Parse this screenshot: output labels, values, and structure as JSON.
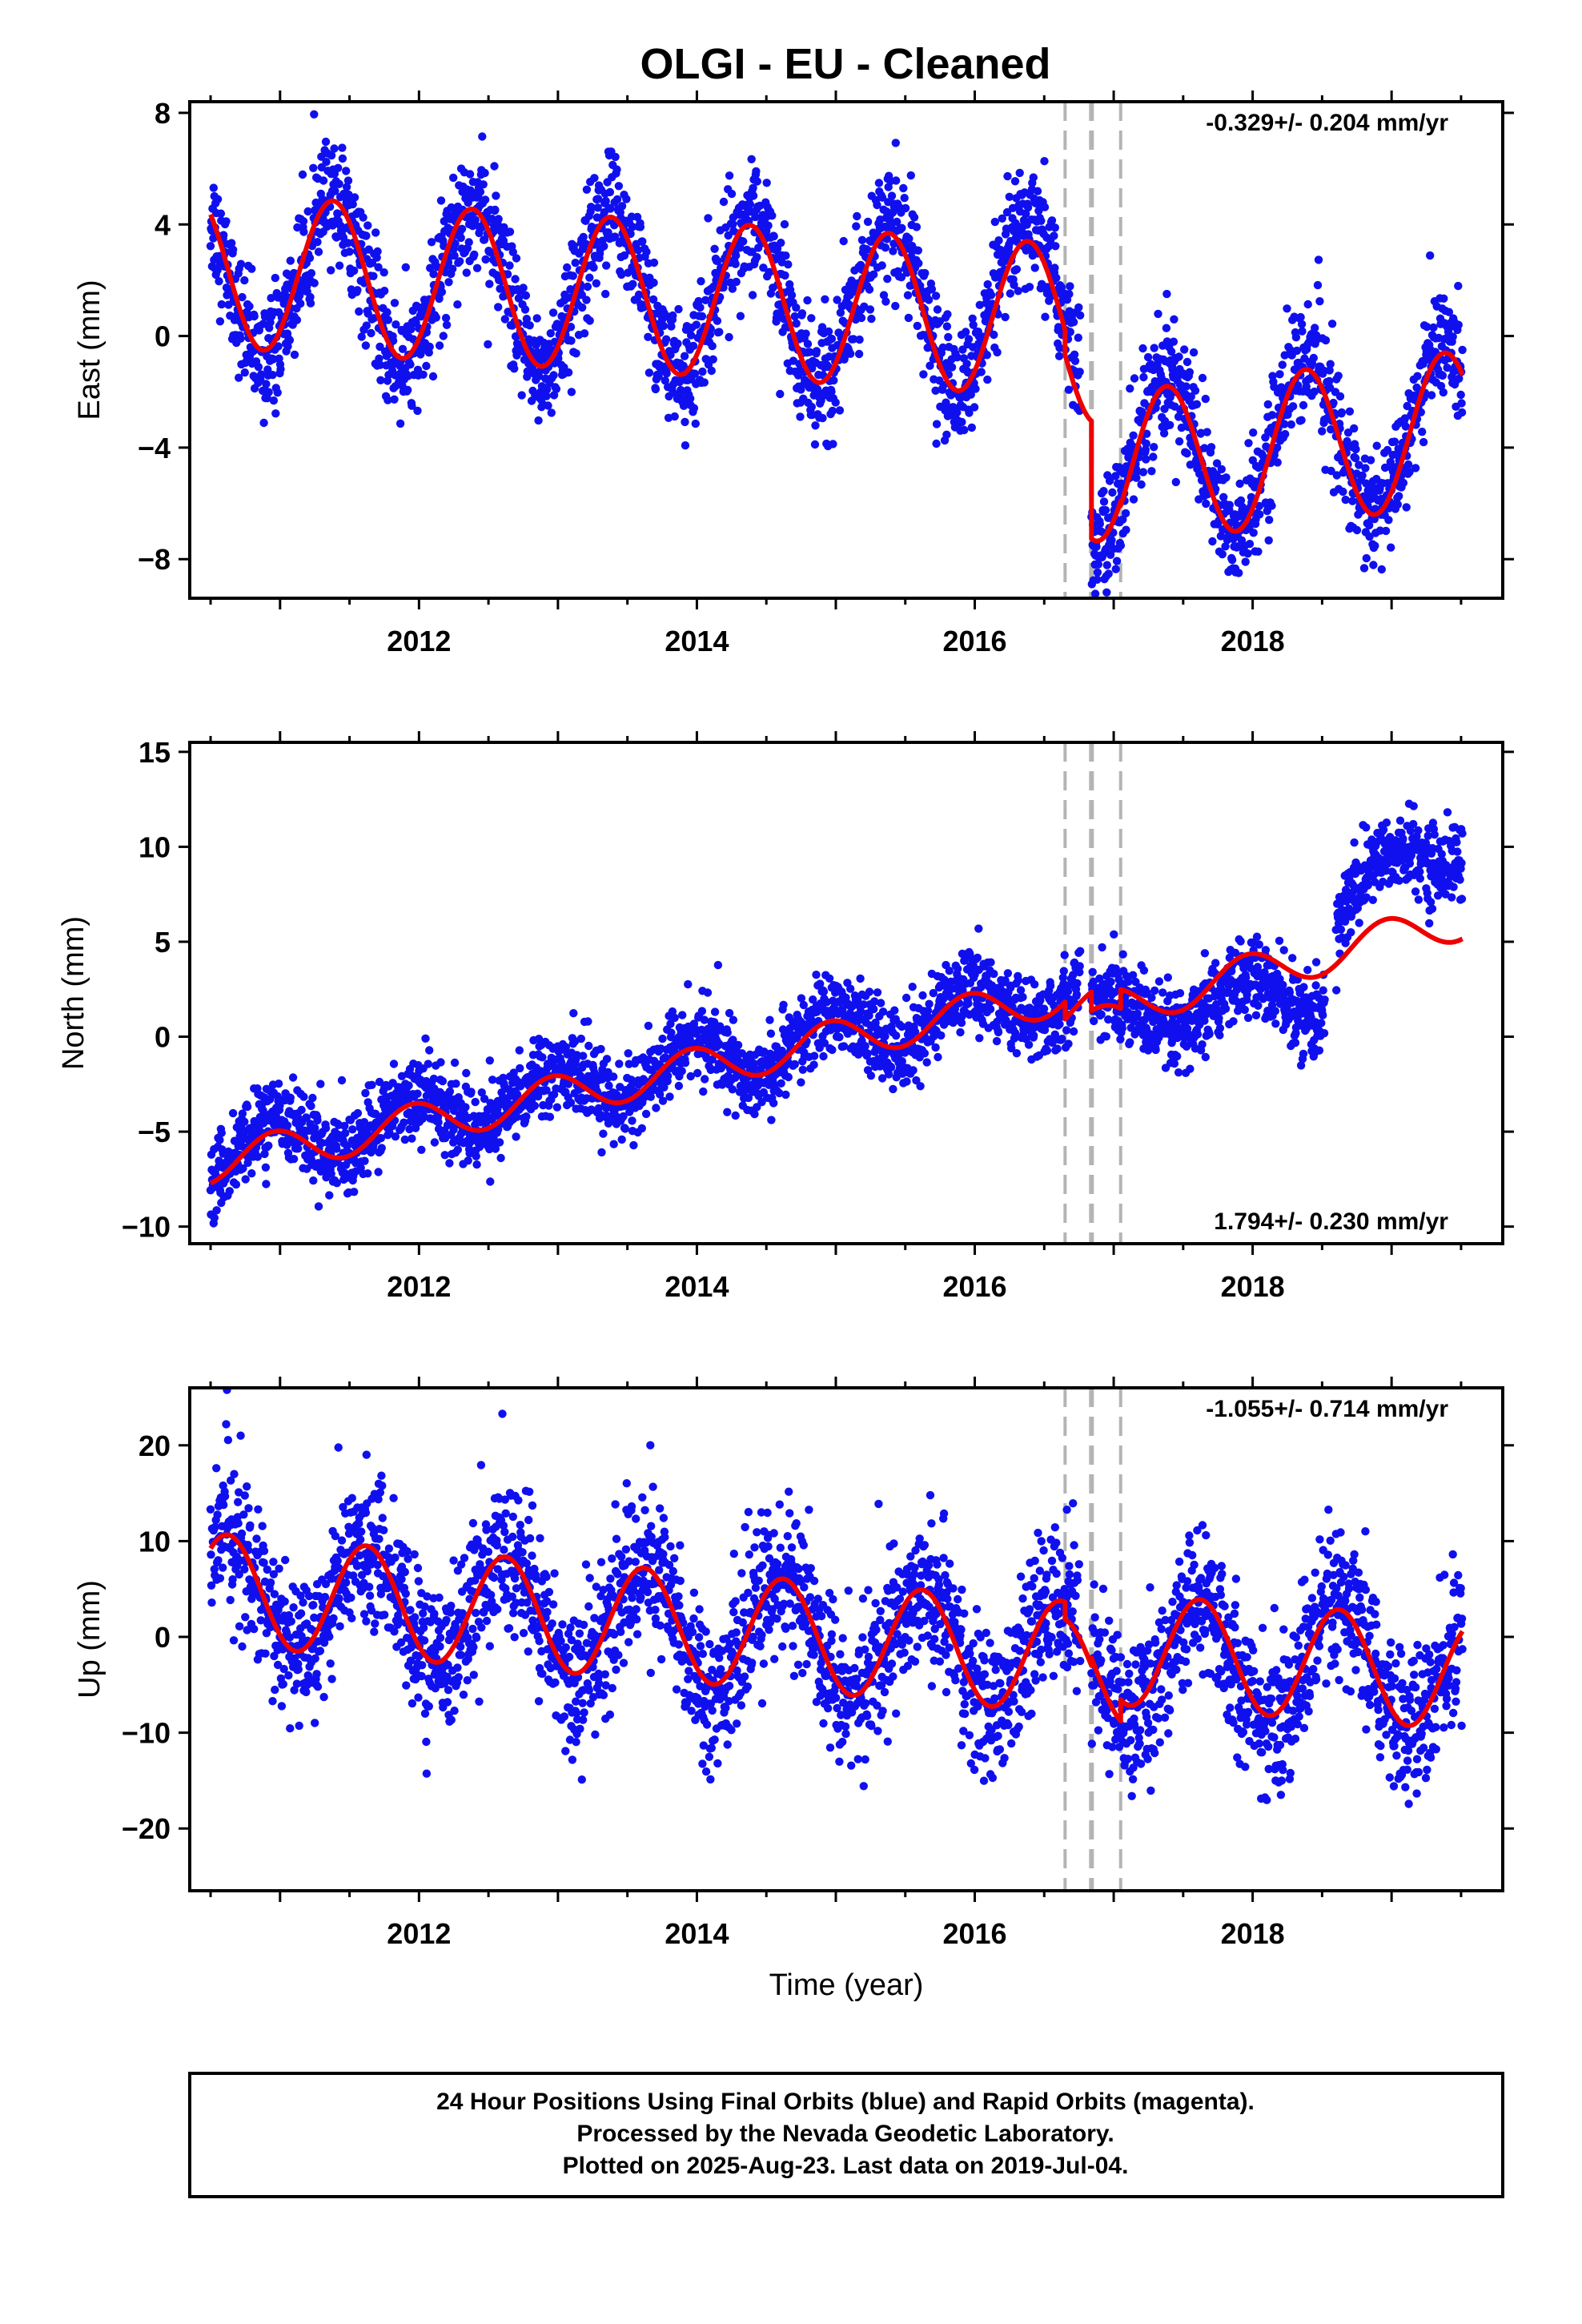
{
  "title": "OLGI  - EU - Cleaned",
  "colors": {
    "final_orbits": "#1010ee",
    "rapid_orbits": "#ff00ff",
    "model": "#ee0000",
    "event_lines": "#b4b4b4",
    "frame": "#000000"
  },
  "chart_data": [
    {
      "type": "scatter",
      "component": "East",
      "ylabel": "East (mm)",
      "xlabel": "",
      "xlim": [
        2010.35,
        2019.8
      ],
      "ylim": [
        -9.4,
        8.4
      ],
      "yticks": [
        -8,
        -4,
        0,
        4,
        8
      ],
      "xticks": [
        2012,
        2014,
        2016,
        2018
      ],
      "rate": "-0.329+/- 0.204 mm/yr",
      "rate_position": "top-right",
      "offset_epochs": [
        2016.65,
        2016.84,
        2017.05
      ],
      "series": [
        {
          "name": "24 Hour Positions Using Final Orbits (blue)",
          "kind": "daily-points",
          "amplitude": 2.9,
          "phase_year": 2011.38,
          "noise_sd": 1.05,
          "segments": [
            {
              "t0": 2010.5,
              "t1": 2016.76,
              "intercept_at_2010_5": 2.2,
              "slope": -0.22
            },
            {
              "t0": 2016.84,
              "t1": 2019.51,
              "intercept_at_2016_84": -4.7,
              "slope": 0.62
            }
          ]
        },
        {
          "name": "Model",
          "kind": "fitted-curve",
          "amplitude": 2.75,
          "phase_year": 2011.38,
          "segments": [
            {
              "t0": 2010.5,
              "t1": 2016.65,
              "intercept_at_2010_5": 2.35,
              "slope": -0.29
            },
            {
              "t0": 2016.65,
              "t1": 2016.84,
              "intercept_at_2010_5": 1.45,
              "slope": -0.29
            },
            {
              "t0": 2016.84,
              "t1": 2017.05,
              "intercept_at_2010_5": -4.6,
              "slope": 0.0
            },
            {
              "t0": 2017.05,
              "t1": 2019.51,
              "intercept_at_2017_05": -4.75,
              "slope": 0.6
            }
          ]
        }
      ]
    },
    {
      "type": "scatter",
      "component": "North",
      "ylabel": "North (mm)",
      "xlabel": "",
      "xlim": [
        2010.35,
        2019.8
      ],
      "ylim": [
        -10.9,
        15.5
      ],
      "yticks": [
        -10,
        -5,
        0,
        5,
        10,
        15
      ],
      "xticks": [
        2012,
        2014,
        2016,
        2018
      ],
      "rate": "1.794+/- 0.230 mm/yr",
      "rate_position": "bottom-right",
      "offset_epochs": [
        2016.65,
        2016.84,
        2017.05
      ],
      "series": [
        {
          "name": "24 Hour Positions Using Final Orbits (blue)",
          "kind": "daily-points",
          "amplitude": 1.3,
          "phase_year": 2010.96,
          "noise_sd": 1.05,
          "segments": [
            {
              "t0": 2010.5,
              "t1": 2016.76,
              "intercept_at_2010_5": -6.3,
              "slope": 1.4
            },
            {
              "t0": 2016.84,
              "t1": 2018.52,
              "intercept_at_2016_84": 0.8,
              "slope": 0.9
            },
            {
              "t0": 2018.6,
              "t1": 2019.51,
              "intercept_at_2018_6": 6.8,
              "slope": 4.2
            }
          ]
        },
        {
          "name": "Model",
          "kind": "fitted-curve",
          "amplitude": 1.05,
          "phase_year": 2010.96,
          "segments": [
            {
              "t0": 2010.5,
              "t1": 2016.65,
              "intercept_at_2010_5": -6.7,
              "slope": 1.45
            },
            {
              "t0": 2016.65,
              "t1": 2016.84,
              "intercept_at_2010_5": -7.6,
              "slope": 1.45
            },
            {
              "t0": 2016.84,
              "t1": 2017.05,
              "intercept_at_2010_5": 0.6,
              "slope": 0.0
            },
            {
              "t0": 2017.05,
              "t1": 2019.51,
              "intercept_at_2017_05": 1.6,
              "slope": 1.85
            }
          ]
        }
      ]
    },
    {
      "type": "scatter",
      "component": "Up",
      "ylabel": "Up (mm)",
      "xlabel": "Time (year)",
      "xlim": [
        2010.35,
        2019.8
      ],
      "ylim": [
        -26.5,
        26.0
      ],
      "yticks": [
        -20,
        -10,
        0,
        10,
        20
      ],
      "xticks": [
        2012,
        2014,
        2016,
        2018
      ],
      "rate": "-1.055+/- 0.714 mm/yr",
      "rate_position": "top-right",
      "offset_epochs": [
        2016.65,
        2016.84,
        2017.05
      ],
      "series": [
        {
          "name": "24 Hour Positions Using Final Orbits (blue)",
          "kind": "daily-points",
          "amplitude": 6.0,
          "phase_year": 2010.62,
          "noise_sd": 3.9,
          "segments": [
            {
              "t0": 2010.5,
              "t1": 2016.76,
              "intercept_at_2010_5": 5.0,
              "slope": -1.15
            },
            {
              "t0": 2016.84,
              "t1": 2019.51,
              "intercept_at_2016_84": -2.2,
              "slope": -0.6
            }
          ]
        },
        {
          "name": "Model",
          "kind": "fitted-curve",
          "amplitude": 5.8,
          "phase_year": 2010.62,
          "segments": [
            {
              "t0": 2010.5,
              "t1": 2016.65,
              "intercept_at_2010_5": 5.0,
              "slope": -1.15
            },
            {
              "t0": 2016.65,
              "t1": 2016.84,
              "intercept_at_2010_5": 3.2,
              "slope": -1.15
            },
            {
              "t0": 2016.84,
              "t1": 2017.05,
              "intercept_at_2010_5": 4.0,
              "slope": -1.15
            },
            {
              "t0": 2017.05,
              "t1": 2019.51,
              "intercept_at_2017_05": -1.3,
              "slope": -1.05
            }
          ]
        }
      ]
    }
  ],
  "footer": {
    "line1": "24 Hour Positions Using Final Orbits (blue) and Rapid Orbits (magenta).",
    "line2": "Processed by the Nevada Geodetic Laboratory.",
    "line3": "Plotted on 2025-Aug-23. Last data on 2019-Jul-04."
  }
}
